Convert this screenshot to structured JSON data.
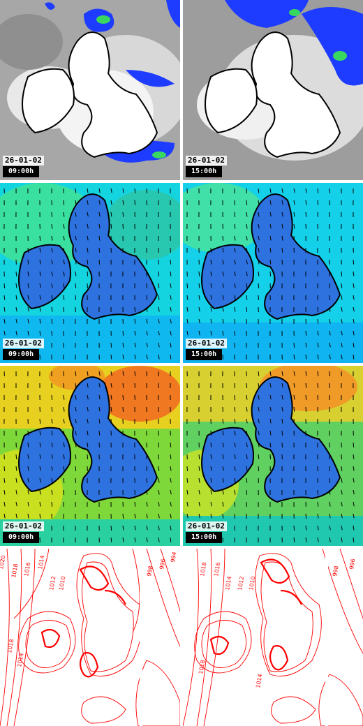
{
  "panels": [
    {
      "row": "cloud",
      "date": "26-01-02",
      "time": "09:00h"
    },
    {
      "row": "cloud",
      "date": "26-01-02",
      "time": "15:00h"
    },
    {
      "row": "wind-low",
      "date": "26-01-02",
      "time": "09:00h"
    },
    {
      "row": "wind-low",
      "date": "26-01-02",
      "time": "15:00h"
    },
    {
      "row": "wind-high",
      "date": "26-01-02",
      "time": "09:00h"
    },
    {
      "row": "wind-high",
      "date": "26-01-02",
      "time": "15:00h"
    },
    {
      "row": "pressure",
      "isobars": [
        "1020",
        "1018",
        "1016",
        "1014",
        "1012",
        "1010",
        "998",
        "996",
        "994",
        "1018",
        "1014"
      ]
    },
    {
      "row": "pressure",
      "isobars": [
        "1018",
        "1016",
        "1014",
        "1012",
        "1010",
        "998",
        "996",
        "1018",
        "1014"
      ]
    }
  ],
  "colors": {
    "coast_outline": "#000000",
    "coast_fill": "#ffffff",
    "isobar": "#ff0000",
    "precip": "#1e3cff",
    "cloud": "#bdbdbd"
  }
}
